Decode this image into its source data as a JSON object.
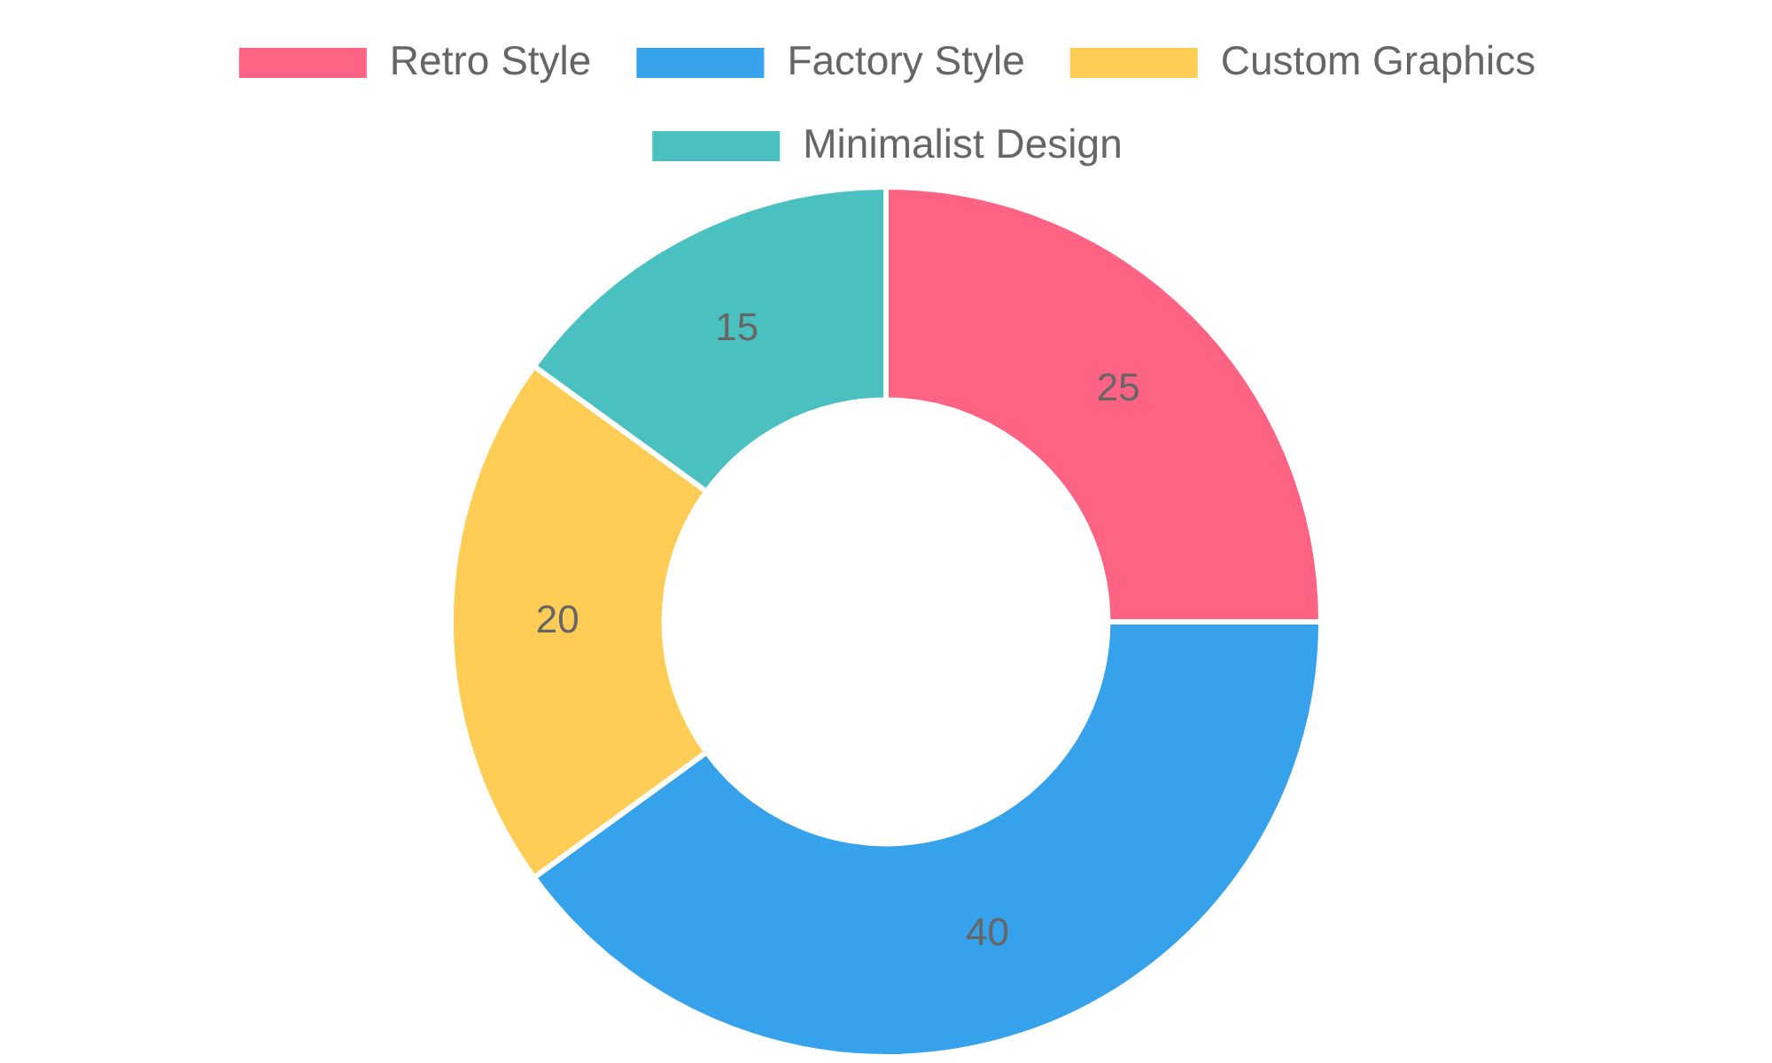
{
  "chart_data": {
    "type": "donut",
    "categories": [
      "Retro Style",
      "Factory Style",
      "Custom Graphics",
      "Minimalist Design"
    ],
    "values": [
      25,
      40,
      20,
      15
    ],
    "colors": [
      "#ff6384",
      "#36a2eb",
      "#ffcd56",
      "#4bc0c0"
    ],
    "legend": "top",
    "data_labels": true
  }
}
